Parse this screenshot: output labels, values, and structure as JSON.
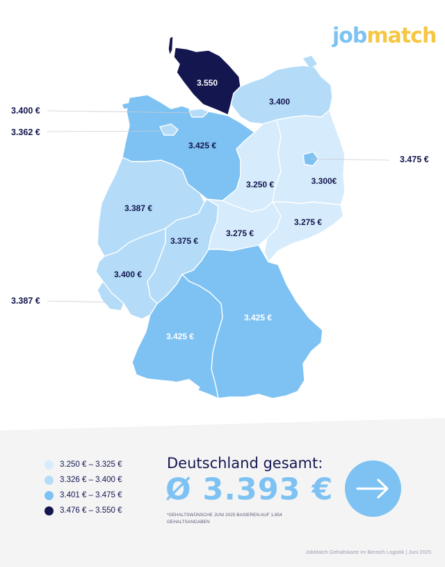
{
  "logo": {
    "part1": "job",
    "part2": "match"
  },
  "colors": {
    "tier1": "#d6ebfb",
    "tier2": "#b4dcf8",
    "tier3": "#7dc2f2",
    "tier4": "#14164f",
    "label_dark": "#14164f",
    "label_light": "#ffffff",
    "accent": "#7dc2f2"
  },
  "regions": [
    {
      "name": "schleswig-holstein",
      "value": "3.550",
      "tier": 4
    },
    {
      "name": "mecklenburg-vorpommern",
      "value": "3.400",
      "tier": 2
    },
    {
      "name": "niedersachsen",
      "value": "3.425 €",
      "tier": 3
    },
    {
      "name": "nordrhein-westfalen",
      "value": "3.387 €",
      "tier": 2
    },
    {
      "name": "sachsen-anhalt",
      "value": "3.250 €",
      "tier": 1
    },
    {
      "name": "brandenburg",
      "value": "3.300€",
      "tier": 1
    },
    {
      "name": "hessen",
      "value": "3.375 €",
      "tier": 2
    },
    {
      "name": "thueringen",
      "value": "3.275 €",
      "tier": 1
    },
    {
      "name": "sachsen",
      "value": "3.275 €",
      "tier": 1
    },
    {
      "name": "rheinland-pfalz",
      "value": "3.400 €",
      "tier": 2
    },
    {
      "name": "bayern",
      "value": "3.425 €",
      "tier": 3
    },
    {
      "name": "baden-wuerttemberg",
      "value": "3.425 €",
      "tier": 3
    }
  ],
  "city_states": [
    {
      "name": "hamburg",
      "value": "3.400 €",
      "tier": 2
    },
    {
      "name": "bremen",
      "value": "3.362 €",
      "tier": 2
    },
    {
      "name": "berlin",
      "value": "3.475 €",
      "tier": 3
    },
    {
      "name": "saarland",
      "value": "3.387 €",
      "tier": 2
    }
  ],
  "legend": [
    {
      "label": "3.250 € – 3.325 €",
      "tier": 1
    },
    {
      "label": "3.326 € – 3.400 €",
      "tier": 2
    },
    {
      "label": "3.401 € – 3.475 €",
      "tier": 3
    },
    {
      "label": "3.476 € – 3.550 €",
      "tier": 4
    }
  ],
  "total": {
    "title": "Deutschland gesamt:",
    "value": "Ø 3.393 €",
    "footnote": "*Gehaltswünsche Juni 2025 basieren auf 1.854 Gehaltsangaben"
  },
  "arrow_icon": "arrow-right-icon",
  "credit": "JobMatch Gehaltskarte im Bereich Logistik  | Juni 2025"
}
